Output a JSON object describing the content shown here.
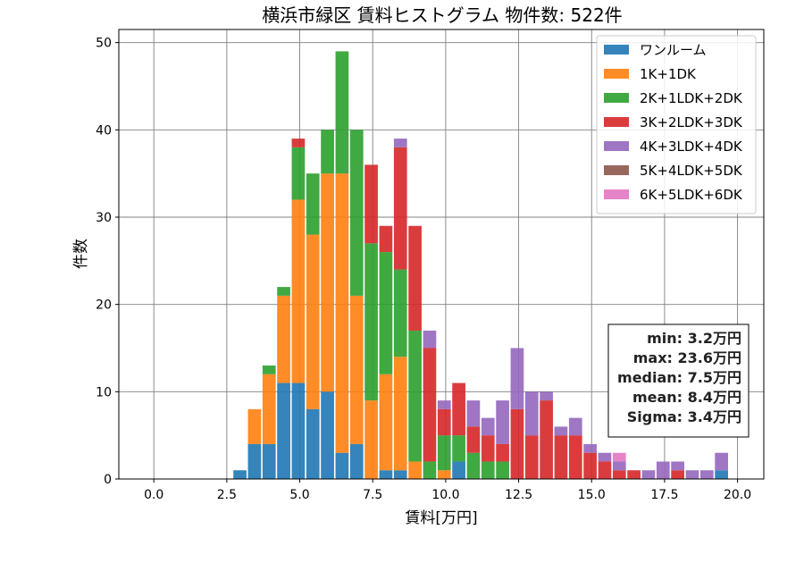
{
  "chart_data": {
    "type": "bar",
    "stacked": true,
    "title": "横浜市緑区 賃料ヒストグラム 物件数: 522件",
    "xlabel": "賃料[万円]",
    "ylabel": "件数",
    "xlim": [
      -1.2,
      20.9
    ],
    "ylim": [
      0,
      51.5
    ],
    "xticks": [
      "0.0",
      "2.5",
      "5.0",
      "7.5",
      "10.0",
      "12.5",
      "15.0",
      "17.5",
      "20.0"
    ],
    "xtick_values": [
      0,
      2.5,
      5,
      7.5,
      10,
      12.5,
      15,
      17.5,
      20
    ],
    "yticks": [
      "0",
      "10",
      "20",
      "30",
      "40",
      "50"
    ],
    "ytick_values": [
      0,
      10,
      20,
      30,
      40,
      50
    ],
    "grid": true,
    "legend_position": "top-right",
    "bin_width": 0.5,
    "x": [
      2.95,
      3.45,
      3.95,
      4.45,
      4.95,
      5.45,
      5.95,
      6.45,
      6.95,
      7.45,
      7.95,
      8.45,
      8.95,
      9.45,
      9.95,
      10.45,
      10.95,
      11.45,
      11.95,
      12.45,
      12.95,
      13.45,
      13.95,
      14.45,
      14.95,
      15.45,
      15.95,
      16.45,
      16.95,
      17.45,
      17.95,
      18.45,
      18.95,
      19.45
    ],
    "series": [
      {
        "name": "ワンルーム",
        "color": "#1f77b4",
        "values": [
          1,
          4,
          4,
          11,
          11,
          8,
          10,
          3,
          4,
          0,
          1,
          1,
          0,
          0,
          0,
          2,
          0,
          0,
          0,
          0,
          0,
          0,
          0,
          0,
          0,
          0,
          0,
          0,
          0,
          0,
          0,
          0,
          0,
          1
        ]
      },
      {
        "name": "1K+1DK",
        "color": "#ff7f0e",
        "values": [
          0,
          4,
          8,
          10,
          21,
          20,
          25,
          32,
          17,
          9,
          11,
          13,
          2,
          0,
          1,
          0,
          0,
          0,
          0,
          0,
          0,
          0,
          0,
          0,
          0,
          0,
          0,
          0,
          0,
          0,
          0,
          0,
          0,
          0
        ]
      },
      {
        "name": "2K+1LDK+2DK",
        "color": "#2ca02c",
        "values": [
          0,
          0,
          1,
          1,
          6,
          7,
          5,
          14,
          19,
          18,
          14,
          10,
          15,
          2,
          4,
          3,
          3,
          2,
          2,
          0,
          0,
          0,
          0,
          0,
          0,
          0,
          0,
          0,
          0,
          0,
          0,
          0,
          0,
          0
        ]
      },
      {
        "name": "3K+2LDK+3DK",
        "color": "#d62728",
        "values": [
          0,
          0,
          0,
          0,
          1,
          0,
          0,
          0,
          0,
          9,
          3,
          14,
          12,
          13,
          3,
          6,
          3,
          3,
          2,
          8,
          5,
          9,
          5,
          5,
          3,
          2,
          1,
          1,
          0,
          0,
          1,
          0,
          0,
          0
        ]
      },
      {
        "name": "4K+3LDK+4DK",
        "color": "#9467bd",
        "values": [
          0,
          0,
          0,
          0,
          0,
          0,
          0,
          0,
          0,
          0,
          0,
          1,
          0,
          2,
          1,
          0,
          3,
          2,
          5,
          7,
          5,
          1,
          1,
          2,
          1,
          1,
          1,
          0,
          1,
          2,
          1,
          1,
          1,
          2
        ]
      },
      {
        "name": "5K+4LDK+5DK",
        "color": "#8c564b",
        "values": [
          0,
          0,
          0,
          0,
          0,
          0,
          0,
          0,
          0,
          0,
          0,
          0,
          0,
          0,
          0,
          0,
          0,
          0,
          0,
          0,
          0,
          0,
          0,
          0,
          0,
          0,
          0,
          0,
          0,
          0,
          0,
          0,
          0,
          0
        ]
      },
      {
        "name": "6K+5LDK+6DK",
        "color": "#e377c2",
        "values": [
          0,
          0,
          0,
          0,
          0,
          0,
          0,
          0,
          0,
          0,
          0,
          0,
          0,
          0,
          0,
          0,
          0,
          0,
          0,
          0,
          0,
          0,
          0,
          0,
          0,
          0,
          1,
          0,
          0,
          0,
          0,
          0,
          0,
          0
        ]
      }
    ],
    "stats": [
      "min: 3.2万円",
      "max: 23.6万円",
      "median: 7.5万円",
      "mean: 8.4万円",
      "Sigma: 3.4万円"
    ]
  }
}
